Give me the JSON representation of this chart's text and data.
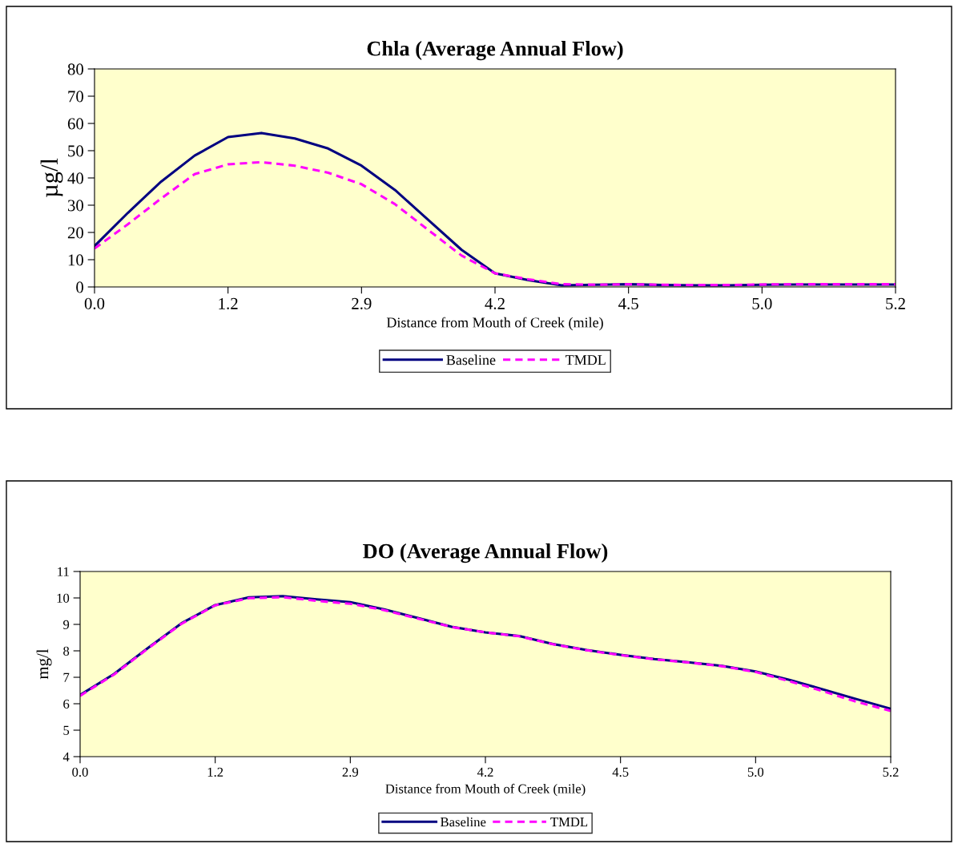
{
  "chart_data": [
    {
      "type": "line",
      "title": "Chla (Average Annual Flow)",
      "xlabel": "Distance from Mouth of Creek (mile)",
      "ylabel": "µg/l",
      "categories": [
        "0.0",
        null,
        null,
        null,
        "1.2",
        null,
        null,
        null,
        "2.9",
        null,
        null,
        null,
        "4.2",
        null,
        null,
        null,
        "4.5",
        null,
        null,
        null,
        "5.0",
        null,
        null,
        null,
        "5.2"
      ],
      "series": [
        {
          "name": "Baseline",
          "color": "#000080",
          "line_style": "solid",
          "values": [
            15,
            27.2,
            38.7,
            48.2,
            55,
            56.5,
            54.5,
            50.8,
            44.5,
            35.6,
            24.6,
            13.6,
            5,
            2.5,
            0.6,
            0.8,
            1.0,
            0.7,
            0.6,
            0.6,
            0.8,
            0.9,
            0.9,
            0.9,
            0.9
          ]
        },
        {
          "name": "TMDL",
          "color": "#ff00ff",
          "line_style": "dashed",
          "values": [
            14.1,
            23,
            32.5,
            41.4,
            45,
            45.8,
            44.5,
            41.9,
            37.7,
            30.4,
            20.9,
            11.5,
            5,
            2.8,
            1.0,
            0.8,
            1.0,
            0.8,
            0.7,
            0.7,
            0.9,
            1.0,
            1.0,
            1.0,
            1.0
          ]
        }
      ],
      "ylim": [
        0,
        80
      ],
      "yticks": [
        0,
        10,
        20,
        30,
        40,
        50,
        60,
        70,
        80
      ],
      "grid": false,
      "legend": "bottom",
      "marker": "none"
    },
    {
      "type": "line",
      "title": "DO (Average Annual Flow)",
      "xlabel": "Distance from Mouth of Creek (mile)",
      "ylabel": "mg/l",
      "categories": [
        "0.0",
        null,
        null,
        null,
        "1.2",
        null,
        null,
        null,
        "2.9",
        null,
        null,
        null,
        "4.2",
        null,
        null,
        null,
        "4.5",
        null,
        null,
        null,
        "5.0",
        null,
        null,
        null,
        "5.2"
      ],
      "series": [
        {
          "name": "Baseline",
          "color": "#000080",
          "line_style": "solid",
          "values": [
            6.33,
            7.12,
            8.1,
            9.04,
            9.73,
            10.02,
            10.07,
            9.95,
            9.84,
            9.57,
            9.24,
            8.91,
            8.7,
            8.56,
            8.26,
            8.03,
            7.85,
            7.69,
            7.57,
            7.43,
            7.22,
            6.9,
            6.54,
            6.17,
            5.81
          ]
        },
        {
          "name": "TMDL",
          "color": "#ff00ff",
          "line_style": "dashed",
          "values": [
            6.3,
            7.1,
            8.08,
            9.02,
            9.72,
            9.99,
            10.03,
            9.89,
            9.78,
            9.54,
            9.22,
            8.9,
            8.7,
            8.55,
            8.25,
            8.02,
            7.84,
            7.68,
            7.56,
            7.42,
            7.2,
            6.85,
            6.47,
            6.07,
            5.73
          ]
        }
      ],
      "ylim": [
        4,
        11
      ],
      "yticks": [
        4,
        5,
        6,
        7,
        8,
        9,
        10,
        11
      ],
      "grid": false,
      "legend": "bottom",
      "marker": "none"
    }
  ]
}
